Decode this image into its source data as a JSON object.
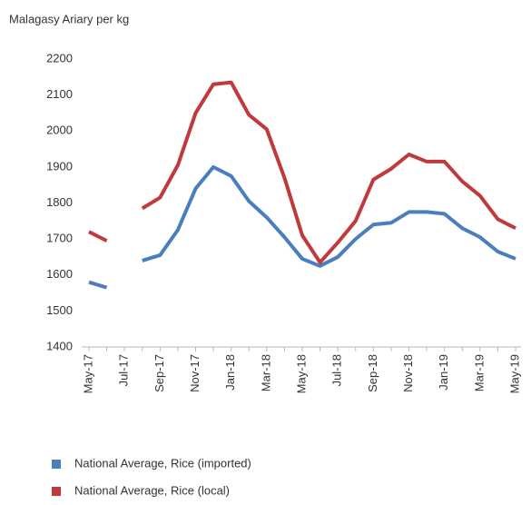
{
  "chart_data": {
    "type": "line",
    "title": "Malagasy Ariary per kg",
    "categories": [
      "May-17",
      null,
      "Jul-17",
      null,
      "Sep-17",
      null,
      "Nov-17",
      null,
      "Jan-18",
      null,
      "Mar-18",
      null,
      "May-18",
      null,
      "Jul-18",
      null,
      "Sep-18",
      null,
      "Nov-18",
      null,
      "Jan-19",
      null,
      "Mar-19",
      null,
      "May-19"
    ],
    "series": [
      {
        "name": "National Average, Rice (imported)",
        "color": "#4a7ebf",
        "values": [
          1580,
          1565,
          null,
          1640,
          1655,
          1725,
          1840,
          1900,
          1875,
          1805,
          1760,
          1705,
          1645,
          1625,
          1650,
          1700,
          1740,
          1745,
          1775,
          1775,
          1770,
          1730,
          1705,
          1665,
          1645
        ]
      },
      {
        "name": "National Average, Rice (local)",
        "color": "#c0393b",
        "values": [
          1720,
          1695,
          null,
          1785,
          1815,
          1905,
          2050,
          2130,
          2135,
          2045,
          2005,
          1870,
          1710,
          1635,
          1690,
          1750,
          1865,
          1895,
          1935,
          1915,
          1915,
          1860,
          1820,
          1755,
          1730
        ]
      }
    ],
    "ylim": [
      1400,
      2200
    ],
    "yticks": [
      1400,
      1500,
      1600,
      1700,
      1800,
      1900,
      2000,
      2100,
      2200
    ],
    "legend": "bottom"
  }
}
